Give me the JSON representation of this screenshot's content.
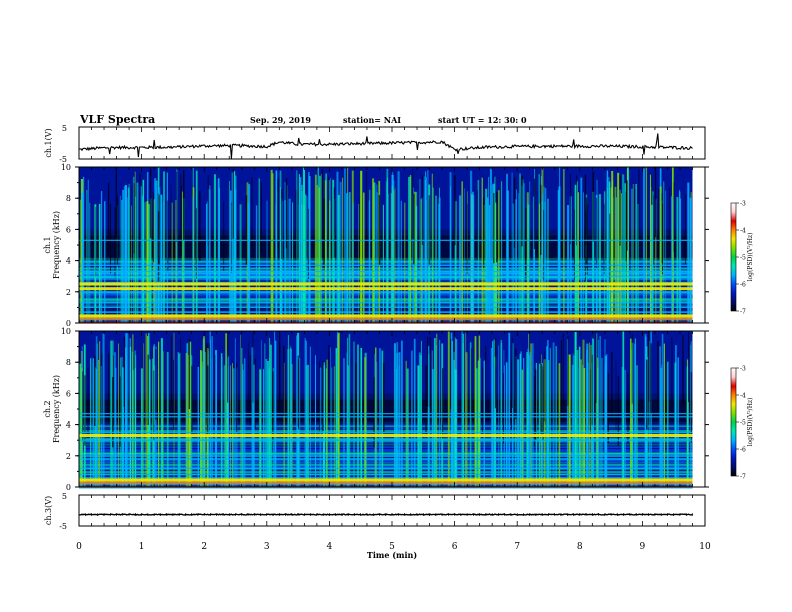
{
  "header": {
    "title": "VLF Spectra",
    "date": "Sep. 29, 2019",
    "station": "station= NAI",
    "start": "start  UT =   12: 30: 0"
  },
  "chart_data": [
    {
      "type": "line",
      "panel": "ch1-waveform",
      "ylabel": "ch.1(V)",
      "ylim": [
        -5,
        5
      ],
      "yticks": [
        "5",
        "-5"
      ],
      "xlim": [
        0,
        10
      ],
      "x": [
        0,
        0.5,
        1,
        1.5,
        2,
        2.5,
        3,
        3.2,
        3.5,
        4,
        4.5,
        5,
        5.5,
        5.8,
        6,
        6.5,
        7,
        7.5,
        8,
        8.5,
        9,
        9.5,
        9.8
      ],
      "y": [
        -2.0,
        -1.4,
        -1.4,
        -1.3,
        -0.9,
        -0.8,
        -1.1,
        0.3,
        -0.4,
        -0.4,
        -0.2,
        0.0,
        0.2,
        0.4,
        -2.0,
        -1.3,
        -1.1,
        -1.0,
        -1.0,
        -1.0,
        -1.2,
        -1.4,
        -1.6
      ]
    },
    {
      "type": "heatmap",
      "panel": "ch1-spectrogram",
      "ylabel": "ch.1\nFrequency (kHz)",
      "ylim": [
        0,
        10
      ],
      "yticks": [
        "0",
        "2",
        "4",
        "6",
        "8",
        "10"
      ],
      "xlim": [
        0,
        9.8
      ],
      "colorbar": {
        "label": "log(PSD)(V²/Hz)",
        "range": [
          -7,
          -3
        ],
        "ticks": [
          "-3",
          "-4",
          "-5",
          "-6",
          "-7"
        ]
      },
      "lines_khz": [
        0.2,
        0.45,
        0.7,
        1.0,
        1.3,
        2.0,
        2.2,
        2.5,
        3.0,
        3.3,
        3.7,
        5.3
      ],
      "bright_lines_khz": [
        0.45,
        2.2,
        2.5
      ]
    },
    {
      "type": "heatmap",
      "panel": "ch2-spectrogram",
      "ylabel": "ch.2\nFrequency (kHz)",
      "ylim": [
        0,
        10
      ],
      "yticks": [
        "0",
        "2",
        "4",
        "6",
        "8",
        "10"
      ],
      "xlim": [
        0,
        9.8
      ],
      "colorbar": {
        "label": "log(PSD)(V²/Hz)",
        "range": [
          -7,
          -3
        ],
        "ticks": [
          "-3",
          "-4",
          "-5",
          "-6",
          "-7"
        ]
      },
      "lines_khz": [
        0.2,
        0.45,
        0.8,
        1.2,
        1.8,
        2.0,
        3.0,
        3.3,
        3.5,
        4.5,
        4.7
      ],
      "bright_lines_khz": [
        0.45,
        3.3
      ]
    },
    {
      "type": "line",
      "panel": "ch3-waveform",
      "ylabel": "ch.3(V)",
      "ylim": [
        -5,
        5
      ],
      "yticks": [
        "5",
        "-5"
      ],
      "xlim": [
        0,
        10
      ],
      "x": [
        0,
        9.8
      ],
      "y": [
        -1.3,
        -1.3
      ]
    }
  ],
  "xaxis": {
    "label": "Time (min)",
    "ticks": [
      "0",
      "1",
      "2",
      "3",
      "4",
      "5",
      "6",
      "7",
      "8",
      "9",
      "10"
    ]
  },
  "colors": {
    "waveform": "#000000",
    "spectrogram_background": "#02106e",
    "dark_region": "#000018",
    "colormap": [
      "#000000",
      "#000c70",
      "#0018c0",
      "#0050ff",
      "#00b4ff",
      "#00e8b0",
      "#00d24a",
      "#7ee000",
      "#f0e800",
      "#ff8000",
      "#e00000",
      "#ffd0d0",
      "#ffffff"
    ]
  }
}
